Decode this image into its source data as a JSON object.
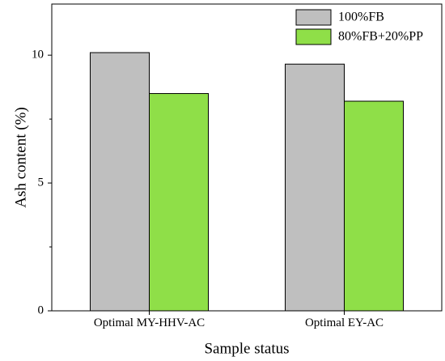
{
  "chart_data": {
    "type": "bar",
    "title": "",
    "xlabel": "Sample status",
    "ylabel": "Ash content (%)",
    "categories": [
      "Optimal MY-HHV-AC",
      "Optimal EY-AC"
    ],
    "series": [
      {
        "name": "100%FB",
        "values": [
          10.1,
          9.65
        ],
        "color": "#bfbfbf"
      },
      {
        "name": "80%FB+20%PP",
        "values": [
          8.5,
          8.2
        ],
        "color": "#8fdf48"
      }
    ],
    "ylim": [
      0,
      12
    ],
    "yticks": [
      0,
      5,
      10
    ],
    "grid": false,
    "legend": "top-right"
  }
}
